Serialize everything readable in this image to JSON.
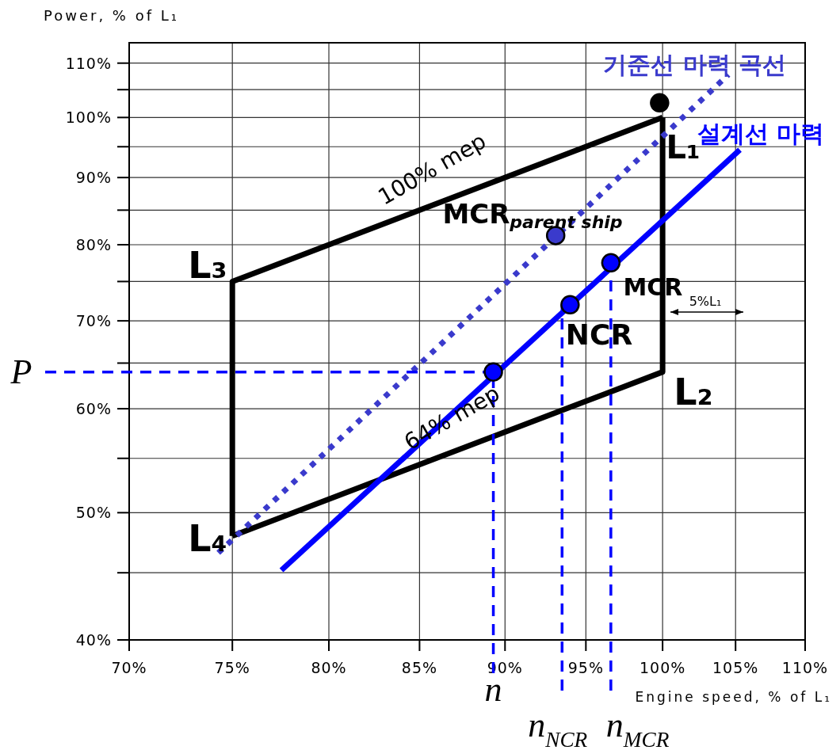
{
  "chart_data": {
    "type": "line",
    "xlabel": "Engine speed, % of L₁",
    "ylabel": "Power, % of L₁",
    "log": "xy",
    "grid": true,
    "xlim": [
      70,
      110
    ],
    "ylim": [
      40,
      114
    ],
    "xticks": [
      {
        "value": 70,
        "label": "70%"
      },
      {
        "value": 75,
        "label": "75%"
      },
      {
        "value": 80,
        "label": "80%"
      },
      {
        "value": 85,
        "label": "85%"
      },
      {
        "value": 90,
        "label": "90%"
      },
      {
        "value": 95,
        "label": "95%"
      },
      {
        "value": 100,
        "label": "100%"
      },
      {
        "value": 105,
        "label": "105%"
      },
      {
        "value": 110,
        "label": "110%"
      }
    ],
    "yticks": [
      {
        "value": 40,
        "label": "40%"
      },
      {
        "value": 45,
        "label": null
      },
      {
        "value": 50,
        "label": "50%"
      },
      {
        "value": 55,
        "label": null
      },
      {
        "value": 60,
        "label": "60%"
      },
      {
        "value": 65,
        "label": null
      },
      {
        "value": 70,
        "label": "70%"
      },
      {
        "value": 75,
        "label": null
      },
      {
        "value": 80,
        "label": "80%"
      },
      {
        "value": 85,
        "label": null
      },
      {
        "value": 90,
        "label": "90%"
      },
      {
        "value": 95,
        "label": null
      },
      {
        "value": 100,
        "label": "100%"
      },
      {
        "value": 105,
        "label": null
      },
      {
        "value": 110,
        "label": "110%"
      }
    ],
    "series": [
      {
        "line_style": "solid",
        "color": "#000000",
        "x": [
          75,
          75,
          100
        ],
        "values": [
          48,
          75,
          100
        ]
      },
      {
        "line_style": "solid",
        "color": "#000000",
        "x": [
          100,
          100,
          75
        ],
        "values": [
          100,
          64,
          48
        ]
      },
      {
        "name": "기준선 마력 곡선",
        "line_style": "dotted",
        "color": "#3a3acc",
        "x": [
          74.3,
          104.5
        ],
        "values": [
          46.6,
          107.8
        ]
      },
      {
        "name": "설계선 마력",
        "line_style": "solid",
        "color": "#0000ff",
        "x": [
          77.5,
          105.3
        ],
        "values": [
          45.2,
          94.5
        ]
      },
      {
        "name": "P",
        "line_style": "dashed",
        "color": "#0000ff",
        "x": [
          70,
          89.3
        ],
        "values": [
          64,
          64
        ]
      },
      {
        "name": "n",
        "line_style": "dashed",
        "color": "#0000ff",
        "x": [
          89.3,
          89.3
        ],
        "values": [
          40,
          64
        ]
      },
      {
        "name": "n$_{NCR}$",
        "line_style": "dashed",
        "color": "#0000ff",
        "x": [
          93.5,
          93.5
        ],
        "values": [
          40,
          72.0
        ]
      },
      {
        "name": "n$_{MCR}$",
        "line_style": "dashed",
        "color": "#0000ff",
        "x": [
          96.6,
          96.6
        ],
        "values": [
          40,
          77.5
        ]
      },
      {
        "type": "scatter",
        "marker": "circle",
        "x": [
          99.8,
          93.1,
          96.6,
          94.0,
          89.3
        ],
        "values": [
          102.6,
          81.3,
          77.5,
          72.0,
          64
        ],
        "colors": [
          "#000000",
          "#3a3acc",
          "#0000ff",
          "#0000ff",
          "#0000ff"
        ]
      }
    ],
    "annotations": [
      "100% mep",
      "64% mep",
      "MCR$_{parent ship}$",
      "L₁",
      "L₂",
      "L₃",
      "L₄",
      "MCR",
      "NCR",
      "5%L₁"
    ]
  }
}
